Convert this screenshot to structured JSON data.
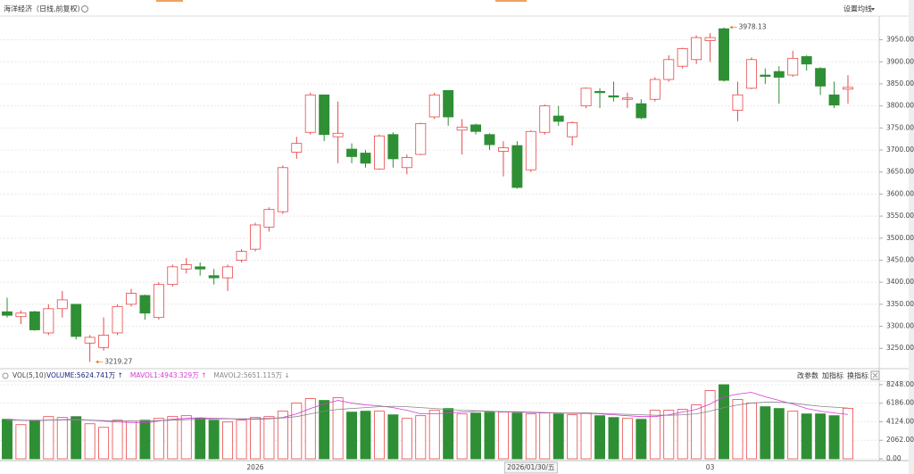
{
  "ui": {
    "ma_button": "设置均线",
    "indicator_buttons": [
      "改参数",
      "加指标",
      "换指标"
    ]
  },
  "chart_data": [
    {
      "type": "candlestick",
      "title": "海洋经济（日线,前复权）",
      "up_color": "#e8484a",
      "down_color": "#2f8f35",
      "annotation_color": "#e8782a",
      "grid": true,
      "categories": [
        null,
        null,
        null,
        null,
        null,
        null,
        null,
        null,
        null,
        null,
        null,
        null,
        null,
        null,
        null,
        null,
        null,
        null,
        "2026",
        null,
        null,
        null,
        null,
        null,
        null,
        null,
        null,
        null,
        null,
        null,
        null,
        null,
        null,
        null,
        null,
        null,
        null,
        null,
        "2026/01/30/五",
        null,
        null,
        null,
        null,
        null,
        null,
        null,
        null,
        null,
        null,
        null,
        null,
        "03",
        null,
        null,
        null,
        null,
        null,
        null,
        null,
        null,
        null,
        null
      ],
      "open": [
        3333,
        3322,
        3333,
        3285,
        3340,
        3350,
        3262,
        3252,
        3285,
        3350,
        3370,
        3320,
        3395,
        3430,
        3435,
        3415,
        3410,
        3450,
        3475,
        3525,
        3560,
        3695,
        3740,
        3825,
        3730,
        3702,
        3693,
        3657,
        3735,
        3660,
        3690,
        3775,
        3835,
        3745,
        3757,
        3735,
        3697,
        3710,
        3655,
        3740,
        3777,
        3730,
        3800,
        3833,
        3823,
        3815,
        3805,
        3815,
        3860,
        3890,
        3905,
        3948,
        3975,
        3790,
        3840,
        3870,
        3878,
        3870,
        3912,
        3885,
        3825,
        3838
      ],
      "high": [
        3365,
        3336,
        3335,
        3350,
        3380,
        3350,
        3280,
        3320,
        3350,
        3385,
        3372,
        3400,
        3440,
        3455,
        3445,
        3430,
        3440,
        3475,
        3535,
        3570,
        3665,
        3730,
        3830,
        3825,
        3810,
        3715,
        3700,
        3735,
        3740,
        3690,
        3762,
        3830,
        3835,
        3770,
        3760,
        3738,
        3720,
        3720,
        3745,
        3803,
        3800,
        3765,
        3842,
        3840,
        3855,
        3830,
        3815,
        3865,
        3915,
        3932,
        3960,
        3965,
        3978.13,
        3855,
        3910,
        3885,
        3890,
        3925,
        3915,
        3888,
        3855,
        3870
      ],
      "low": [
        3320,
        3305,
        3290,
        3280,
        3320,
        3270,
        3219.27,
        3245,
        3280,
        3345,
        3315,
        3315,
        3390,
        3420,
        3415,
        3395,
        3380,
        3445,
        3470,
        3515,
        3555,
        3680,
        3735,
        3720,
        3670,
        3670,
        3660,
        3655,
        3660,
        3645,
        3688,
        3770,
        3755,
        3690,
        3735,
        3700,
        3640,
        3612,
        3650,
        3735,
        3755,
        3710,
        3795,
        3795,
        3810,
        3795,
        3770,
        3810,
        3855,
        3885,
        3895,
        3900,
        3855,
        3765,
        3838,
        3850,
        3805,
        3866,
        3880,
        3825,
        3795,
        3805
      ],
      "close": [
        3325,
        3330,
        3292,
        3340,
        3360,
        3277,
        3275,
        3280,
        3345,
        3375,
        3330,
        3395,
        3435,
        3440,
        3430,
        3410,
        3435,
        3470,
        3530,
        3565,
        3660,
        3715,
        3825,
        3735,
        3738,
        3685,
        3670,
        3732,
        3680,
        3683,
        3760,
        3825,
        3775,
        3752,
        3742,
        3712,
        3705,
        3615,
        3742,
        3800,
        3765,
        3762,
        3840,
        3830,
        3820,
        3818,
        3773,
        3860,
        3905,
        3930,
        3955,
        3955,
        3858,
        3825,
        3905,
        3867,
        3865,
        3908,
        3895,
        3845,
        3802,
        3842
      ],
      "ylim": [
        3210,
        4020
      ],
      "yticks": [
        {
          "value": 3250,
          "label": "3250.00"
        },
        {
          "value": 3300,
          "label": "3300.00"
        },
        {
          "value": 3350,
          "label": "3350.00"
        },
        {
          "value": 3400,
          "label": "3400.00"
        },
        {
          "value": 3450,
          "label": "3450.00"
        },
        {
          "value": 3500,
          "label": "3500.00"
        },
        {
          "value": 3550,
          "label": "3550.00"
        },
        {
          "value": 3600,
          "label": "3600.00"
        },
        {
          "value": 3650,
          "label": "3650.00"
        },
        {
          "value": 3700,
          "label": "3700.00"
        },
        {
          "value": 3750,
          "label": "3750.00"
        },
        {
          "value": 3800,
          "label": "3800.00"
        },
        {
          "value": 3850,
          "label": "3850.00"
        },
        {
          "value": 3900,
          "label": "3900.00"
        },
        {
          "value": 3950,
          "label": "3950.00"
        }
      ]
    },
    {
      "type": "bar",
      "title": "VOL(5,10)",
      "grid": true,
      "series": [
        {
          "name": "VOLUME",
          "readout": ":5624.741万 ↑",
          "color": "#1a237e",
          "values": [
            4400,
            3800,
            4300,
            4700,
            4600,
            4700,
            3900,
            3500,
            4300,
            4200,
            4300,
            4500,
            4700,
            4800,
            4500,
            4300,
            4100,
            4300,
            4600,
            4700,
            5300,
            6200,
            6700,
            6500,
            6800,
            5200,
            5300,
            5300,
            4900,
            4500,
            4800,
            5400,
            5600,
            5000,
            5100,
            5200,
            5200,
            5100,
            5000,
            5100,
            5000,
            4900,
            5100,
            4800,
            4600,
            4500,
            4400,
            5400,
            5400,
            5500,
            6000,
            7600,
            8248,
            6600,
            6200,
            5800,
            5600,
            5300,
            5000,
            5000,
            4800,
            5624.741
          ]
        },
        {
          "name": "MAVOL1",
          "readout": ":4943.329万 ↑",
          "color": "#d63ad6",
          "values": [
            4400,
            4300,
            4250,
            4300,
            4350,
            4400,
            4300,
            4200,
            4100,
            4050,
            4000,
            4200,
            4400,
            4500,
            4560,
            4520,
            4480,
            4400,
            4400,
            4450,
            4600,
            5000,
            5600,
            6100,
            6500,
            6200,
            6000,
            5900,
            5700,
            5400,
            5000,
            5000,
            5100,
            5200,
            5300,
            5300,
            5200,
            5200,
            5150,
            5100,
            5100,
            5050,
            5050,
            5000,
            4900,
            4800,
            4700,
            4700,
            4900,
            5200,
            5500,
            6100,
            6900,
            7200,
            7400,
            6900,
            6500,
            6100,
            5600,
            5300,
            5100,
            4943.329
          ]
        },
        {
          "name": "MAVOL2",
          "readout": ":5651.115万 ↓",
          "color": "#888888",
          "values": [
            4300,
            4300,
            4280,
            4300,
            4320,
            4330,
            4300,
            4250,
            4200,
            4200,
            4200,
            4250,
            4300,
            4350,
            4400,
            4450,
            4450,
            4450,
            4450,
            4500,
            4550,
            4700,
            5000,
            5300,
            5500,
            5600,
            5700,
            5800,
            5850,
            5800,
            5700,
            5600,
            5500,
            5400,
            5350,
            5300,
            5250,
            5250,
            5200,
            5150,
            5100,
            5100,
            5100,
            5050,
            5000,
            4950,
            4900,
            4850,
            4850,
            4900,
            5000,
            5300,
            5700,
            6000,
            6200,
            6300,
            6300,
            6200,
            6000,
            5850,
            5750,
            5651.115
          ]
        }
      ],
      "ylim": [
        0,
        8640
      ],
      "yticks": [
        {
          "value": 0,
          "label": "0.00"
        },
        {
          "value": 2062,
          "label": "2062.00"
        },
        {
          "value": 4124,
          "label": "4124.00"
        },
        {
          "value": 6186,
          "label": "6186.00"
        },
        {
          "value": 8248,
          "label": "8248.00"
        }
      ]
    }
  ]
}
